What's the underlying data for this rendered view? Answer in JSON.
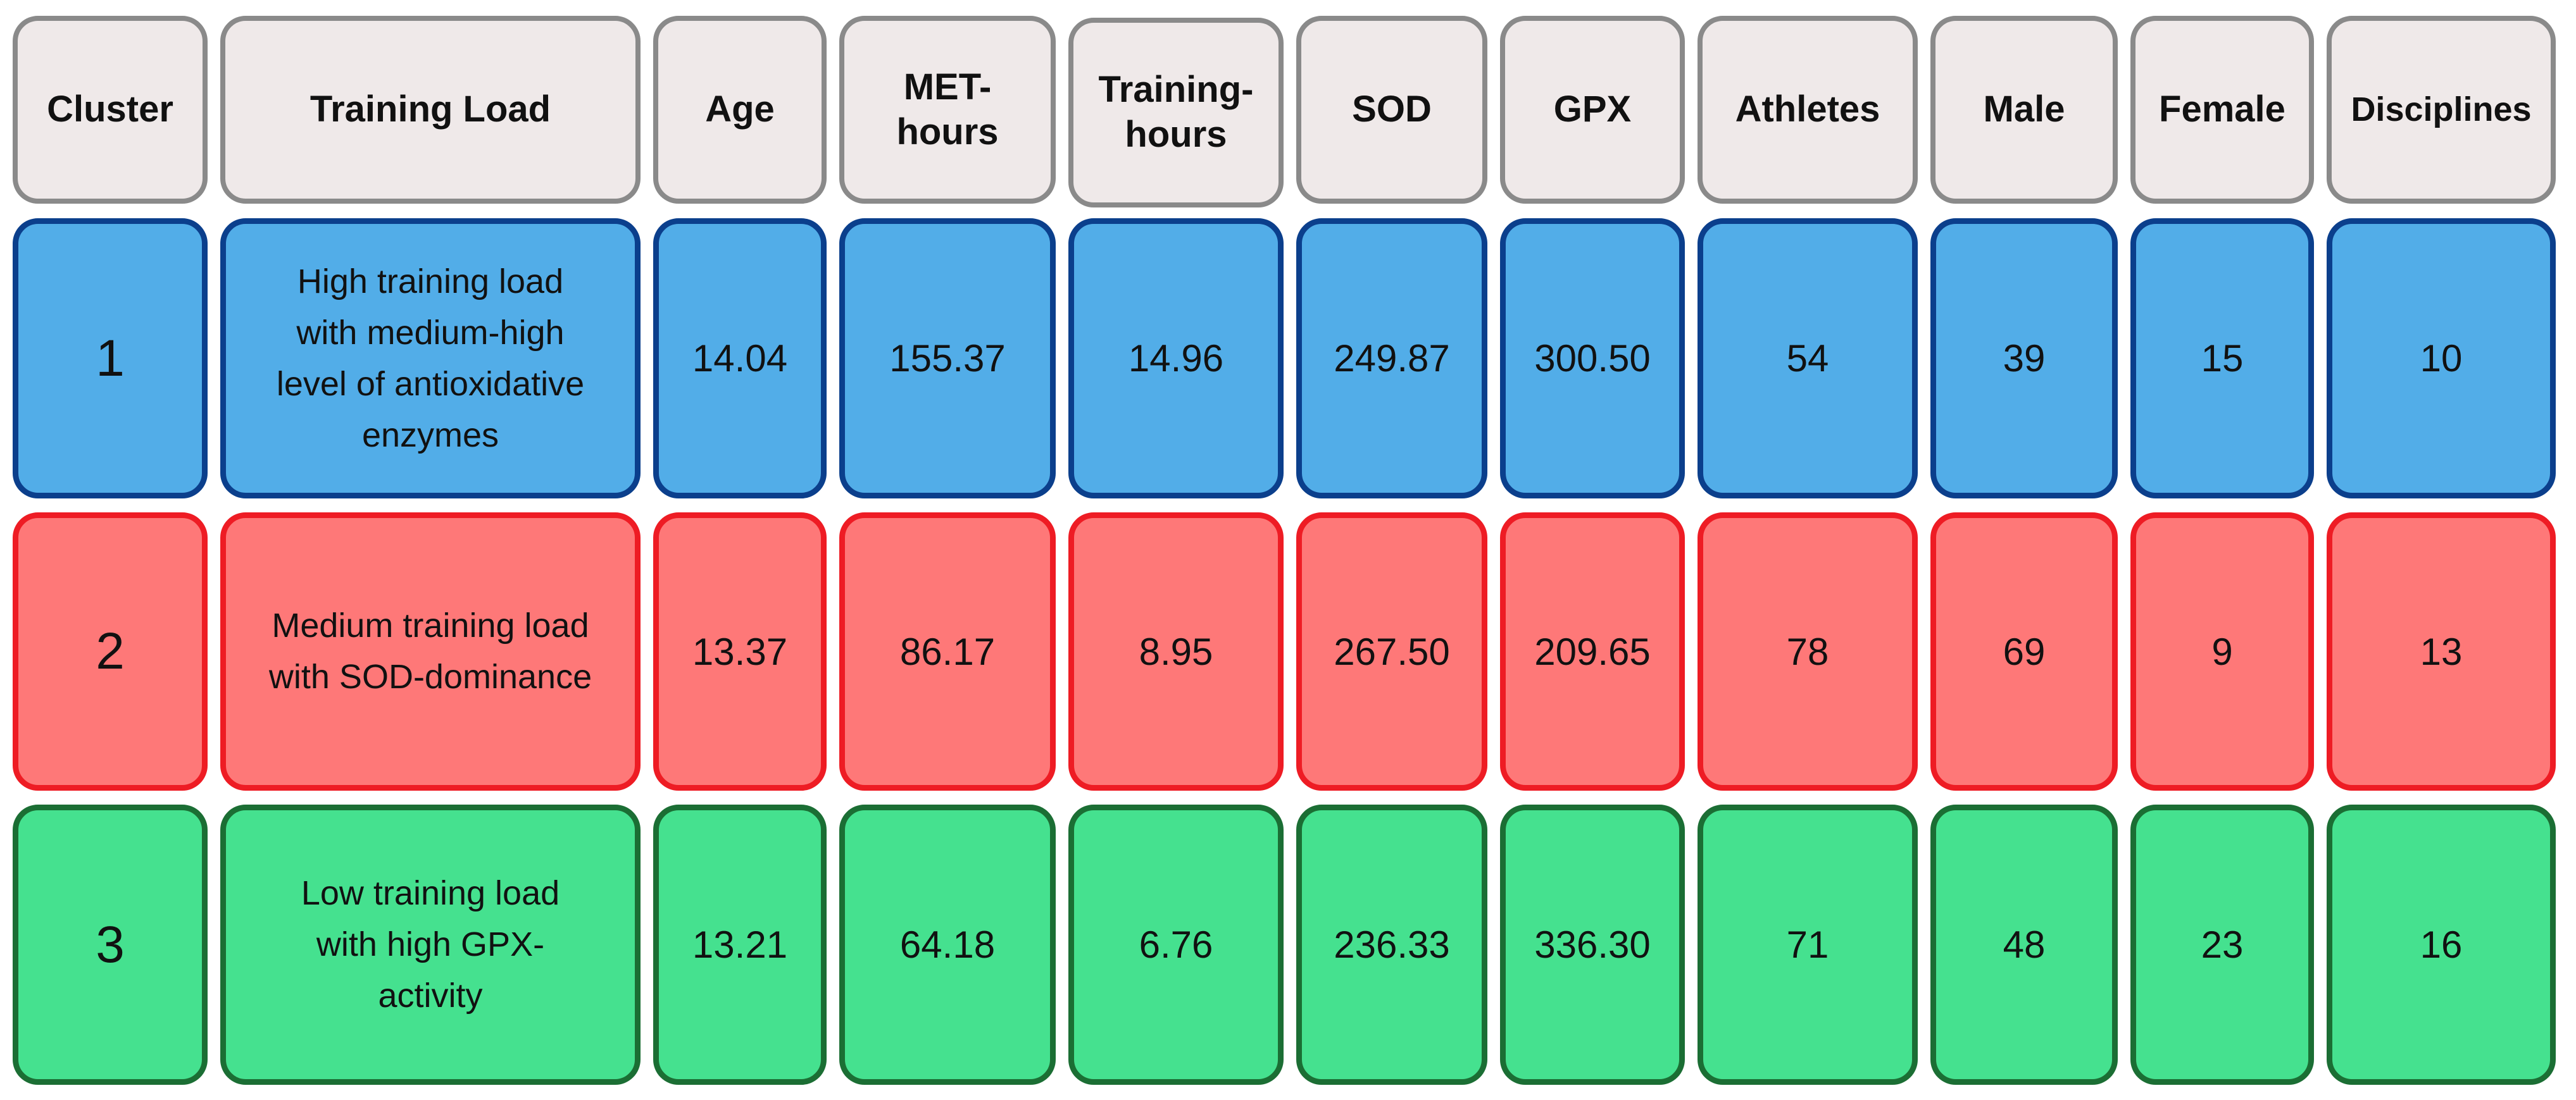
{
  "colors": {
    "header_fill": "#efe9e9",
    "header_border": "#8a8a8a",
    "cluster_1_fill": "#52ade8",
    "cluster_1_border": "#0b3f8c",
    "cluster_2_fill": "#fe7878",
    "cluster_2_border": "#ee1c24",
    "cluster_3_fill": "#45e18f",
    "cluster_3_border": "#1b6e34"
  },
  "chart_data": {
    "type": "table",
    "columns": [
      "Cluster",
      "Training Load",
      "Age",
      "MET-\nhours",
      "Training-\nhours",
      "SOD",
      "GPX",
      "Athletes",
      "Male",
      "Female",
      "Disciplines"
    ],
    "rows": [
      {
        "cluster": "1",
        "training_load": "High training load\nwith medium-high\nlevel of antioxidative\nenzymes",
        "values": [
          "14.04",
          "155.37",
          "14.96",
          "249.87",
          "300.50",
          "54",
          "39",
          "15",
          "10"
        ]
      },
      {
        "cluster": "2",
        "training_load": "Medium training load\nwith SOD-dominance",
        "values": [
          "13.37",
          "86.17",
          "8.95",
          "267.50",
          "209.65",
          "78",
          "69",
          "9",
          "13"
        ]
      },
      {
        "cluster": "3",
        "training_load": "Low training load\nwith high GPX-\nactivity",
        "values": [
          "13.21",
          "64.18",
          "6.76",
          "236.33",
          "336.30",
          "71",
          "48",
          "23",
          "16"
        ]
      }
    ]
  }
}
